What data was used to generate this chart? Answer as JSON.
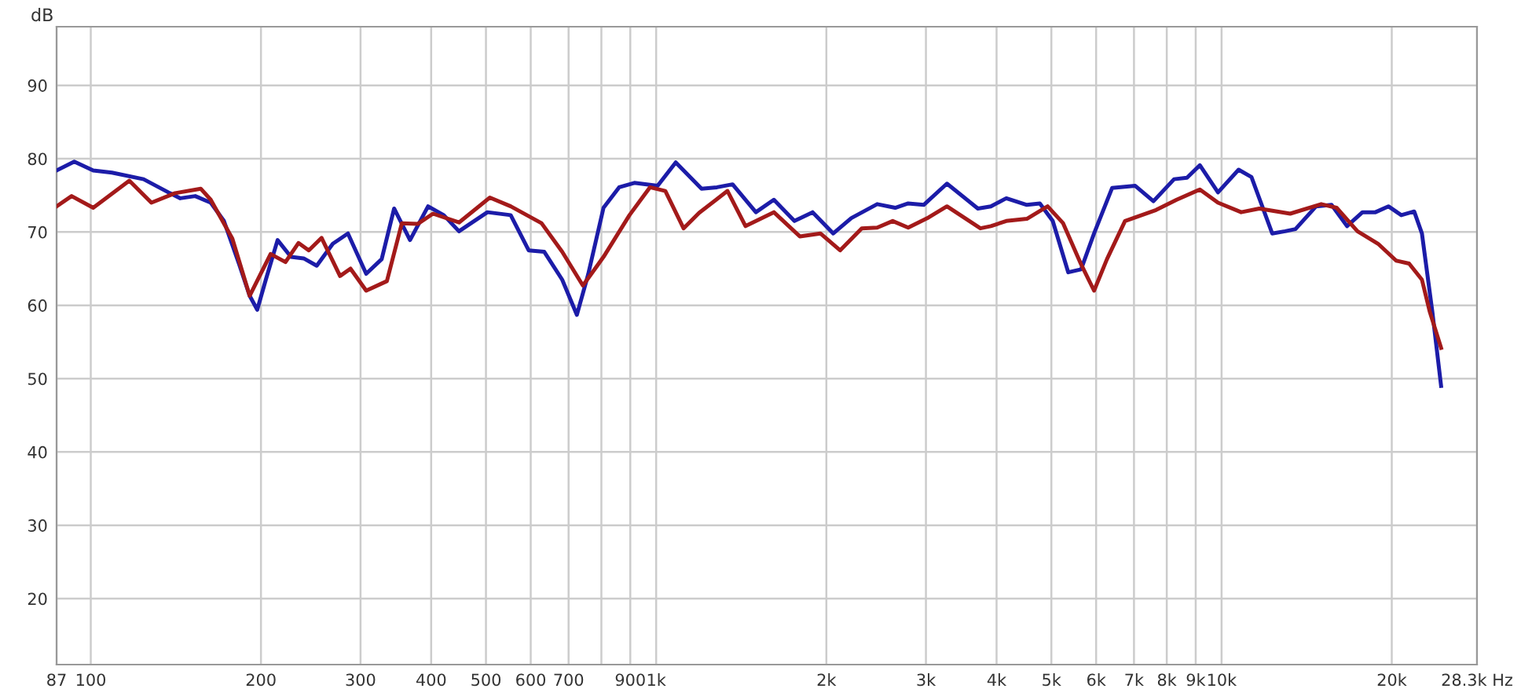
{
  "chart_data": {
    "type": "line",
    "ylabel": "dB",
    "log": "x",
    "grid": true,
    "line_style": "solid",
    "marker": "none",
    "xlim": [
      87,
      28300
    ],
    "ylim": [
      11,
      98
    ],
    "xticks": [
      87,
      100,
      200,
      300,
      400,
      500,
      600,
      700,
      {
        "value": 800,
        "label": null
      },
      900,
      {
        "value": 1000,
        "label": "1k"
      },
      {
        "value": 2000,
        "label": "2k"
      },
      {
        "value": 3000,
        "label": "3k"
      },
      {
        "value": 4000,
        "label": "4k"
      },
      {
        "value": 5000,
        "label": "5k"
      },
      {
        "value": 6000,
        "label": "6k"
      },
      {
        "value": 7000,
        "label": "7k"
      },
      {
        "value": 8000,
        "label": "8k"
      },
      {
        "value": 9000,
        "label": "9k"
      },
      {
        "value": 10000,
        "label": "10k"
      },
      {
        "value": 20000,
        "label": "20k"
      },
      {
        "value": 28300,
        "label": "28.3k Hz"
      }
    ],
    "yticks": [
      20,
      30,
      40,
      50,
      60,
      70,
      80,
      90
    ],
    "series": [
      {
        "color": "#1c1ca8",
        "x": [
          87,
          93.5,
          101,
          109,
          124,
          138,
          144,
          153,
          163,
          172,
          183,
          191,
          197,
          204,
          214,
          226,
          238,
          251,
          268,
          285,
          307,
          327,
          344,
          367,
          395,
          421,
          448,
          503,
          553,
          595,
          634,
          682,
          724,
          758,
          807,
          860,
          915,
          1006,
          1083,
          1203,
          1281,
          1365,
          1501,
          1615,
          1756,
          1891,
          2057,
          2214,
          2460,
          2647,
          2791,
          2973,
          3268,
          3707,
          3908,
          4161,
          4525,
          4771,
          5028,
          5356,
          5643,
          5950,
          6403,
          7037,
          7577,
          8241,
          8687,
          9155,
          9856,
          10718,
          11295,
          12291,
          12953,
          13513,
          14696,
          15650,
          16669,
          17753,
          18713,
          19726,
          20791,
          21911,
          22613,
          23586,
          24450
        ],
        "values": [
          78.4,
          79.6,
          78.4,
          78.1,
          77.2,
          75.3,
          74.6,
          74.9,
          74,
          71.5,
          65.6,
          61.3,
          59.4,
          63.5,
          68.9,
          66.6,
          66.4,
          65.4,
          68.4,
          69.8,
          64.3,
          66.3,
          73.2,
          68.9,
          73.5,
          72.3,
          70.1,
          72.7,
          72.3,
          67.5,
          67.3,
          63.5,
          58.7,
          64.2,
          73.3,
          76.1,
          76.7,
          76.3,
          79.5,
          75.9,
          76.1,
          76.5,
          72.7,
          74.4,
          71.5,
          72.7,
          69.8,
          71.9,
          73.8,
          73.3,
          73.9,
          73.7,
          76.6,
          73.2,
          73.5,
          74.6,
          73.7,
          73.9,
          71.5,
          64.5,
          64.9,
          69.8,
          76,
          76.3,
          74.2,
          77.2,
          77.4,
          79.1,
          75.4,
          78.5,
          77.5,
          69.8,
          70.1,
          70.4,
          73.5,
          73.7,
          70.8,
          72.7,
          72.7,
          73.5,
          72.3,
          72.8,
          69.8,
          59.2,
          49
        ]
      },
      {
        "color": "#a31a1a",
        "x": [
          87,
          92.5,
          101,
          117,
          128,
          141,
          156.5,
          163,
          178,
          191,
          208,
          221,
          233,
          243,
          256,
          276,
          288,
          307,
          334,
          355,
          378.5,
          403,
          448,
          508,
          553,
          627,
          682,
          742,
          807,
          897,
          975,
          1038,
          1118,
          1191,
          1337,
          1439,
          1615,
          1795,
          1952,
          2115,
          2310,
          2460,
          2620,
          2791,
          3035,
          3268,
          3745,
          3908,
          4161,
          4525,
          4924,
          5245,
          5643,
          5950,
          6271,
          6749,
          7658,
          8328,
          9155,
          9856,
          10834,
          11659,
          13225,
          15008,
          15976,
          17392,
          18913,
          20358,
          21460,
          22613,
          23335,
          24450
        ],
        "values": [
          73.5,
          74.9,
          73.3,
          77,
          74,
          75.3,
          75.9,
          74.4,
          69.1,
          61.3,
          67,
          65.9,
          68.5,
          67.5,
          69.2,
          64,
          65,
          62,
          63.3,
          71.2,
          71.1,
          72.5,
          71.3,
          74.7,
          73.5,
          71.2,
          67.3,
          62.7,
          66.6,
          72.3,
          76.1,
          75.6,
          70.5,
          72.6,
          75.6,
          70.8,
          72.7,
          69.4,
          69.8,
          67.5,
          70.5,
          70.6,
          71.5,
          70.6,
          72,
          73.5,
          70.5,
          70.8,
          71.5,
          71.8,
          73.5,
          71.2,
          65.6,
          62,
          66.3,
          71.5,
          73,
          74.4,
          75.8,
          74,
          72.7,
          73.2,
          72.5,
          73.8,
          73.3,
          70.1,
          68.4,
          66.1,
          65.7,
          63.5,
          59.2,
          54.2
        ]
      }
    ]
  }
}
